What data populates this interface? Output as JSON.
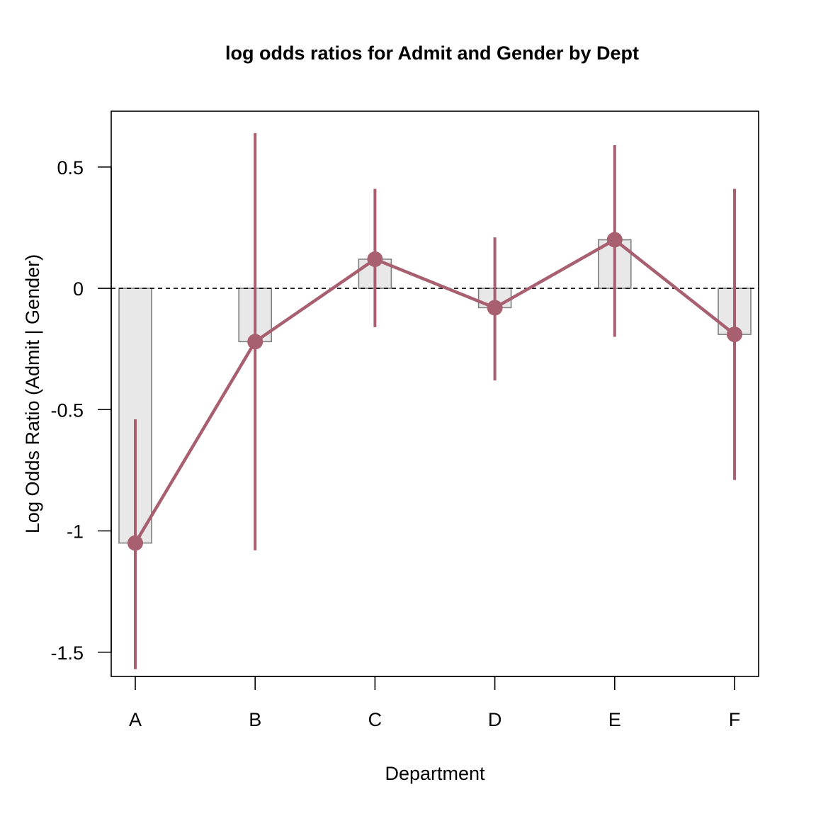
{
  "chart_data": {
    "type": "bar",
    "title": "log odds ratios for Admit and Gender by Dept",
    "xlabel": "Department",
    "ylabel": "Log Odds Ratio (Admit | Gender)",
    "categories": [
      "A",
      "B",
      "C",
      "D",
      "E",
      "F"
    ],
    "values": [
      -1.05,
      -0.22,
      0.12,
      -0.08,
      0.2,
      -0.19
    ],
    "ci_lower": [
      -1.57,
      -1.08,
      -0.16,
      -0.38,
      -0.2,
      -0.79
    ],
    "ci_upper": [
      -0.54,
      0.64,
      0.41,
      0.21,
      0.59,
      0.41
    ],
    "ylim": [
      -1.6,
      0.73
    ],
    "yticks": [
      -1.5,
      -1,
      -0.5,
      0,
      0.5
    ],
    "ytick_labels": [
      "-1.5",
      "-1",
      "-0.5",
      "0",
      "0.5"
    ],
    "reference_line": 0,
    "grid": false,
    "legend": "none",
    "colors": {
      "bar_fill": "#e8e8e8",
      "bar_stroke": "#7f7f7f",
      "series": "#a86070",
      "axis": "#000000"
    }
  }
}
